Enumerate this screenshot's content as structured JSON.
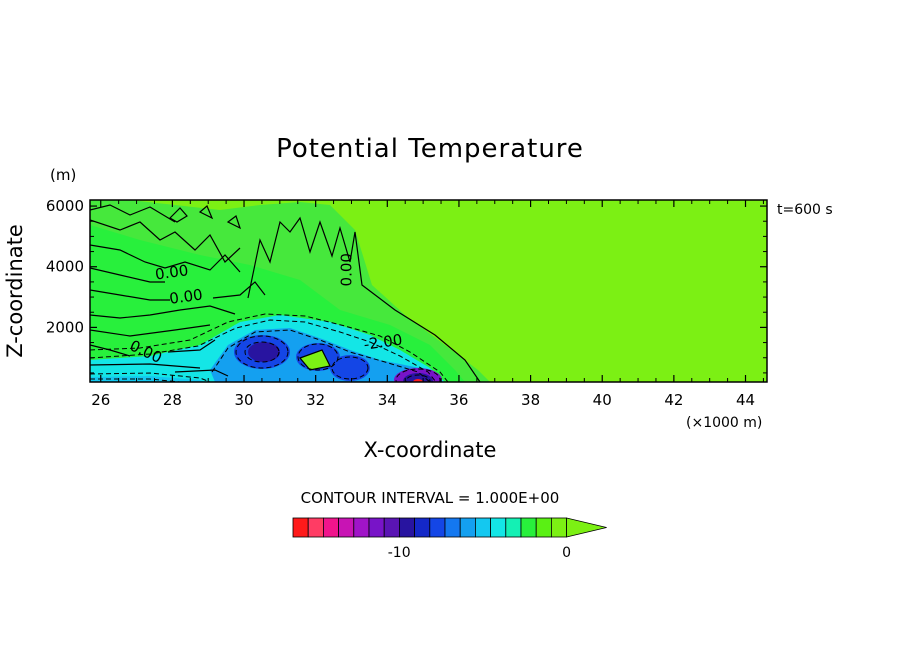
{
  "chart_data": {
    "type": "heatmap",
    "title": "Potential Temperature",
    "xlabel": "X-coordinate",
    "ylabel": "Z-coordinate",
    "x_unit": "(×1000 m)",
    "y_unit": "(m)",
    "time_label": "t=600 s",
    "contour_interval_label": "CONTOUR INTERVAL = 1.000E+00",
    "xlim": [
      25.7,
      44.6
    ],
    "ylim": [
      200,
      6200
    ],
    "x_ticks": [
      26,
      28,
      30,
      32,
      34,
      36,
      38,
      40,
      42,
      44
    ],
    "y_ticks": [
      2000,
      4000,
      6000
    ],
    "x_tick_labels": [
      "26",
      "28",
      "30",
      "32",
      "34",
      "36",
      "38",
      "40",
      "42",
      "44"
    ],
    "y_tick_labels": [
      "2000",
      "4000",
      "6000"
    ],
    "contour_labels": [
      {
        "text": "0.00",
        "x": 28.0,
        "z": 3650
      },
      {
        "text": "0.00",
        "x": 28.4,
        "z": 2850
      },
      {
        "text": "0.00",
        "x": 27.2,
        "z": 1050
      },
      {
        "text": "0.00",
        "x": 33.0,
        "z": 3900
      },
      {
        "text": "-2.00",
        "x": 33.9,
        "z": 1350
      }
    ],
    "colorbar": {
      "colors": [
        "#ff1a1a",
        "#ff3c64",
        "#f0148c",
        "#c814b4",
        "#a014c8",
        "#7814c8",
        "#5a14b4",
        "#2814a0",
        "#1428c8",
        "#1446e6",
        "#1478f0",
        "#14a0f0",
        "#14c8f0",
        "#14e6e6",
        "#14f0b4",
        "#28f03c",
        "#5af014",
        "#7cf014"
      ],
      "tick_labels": [
        "-10",
        "0"
      ]
    },
    "field_colors": {
      "background": "#7cf014",
      "green_mid": "#46e83c",
      "cyan": "#14e6e6",
      "light_blue": "#14a0f0",
      "blue": "#1446e6",
      "dark_blue": "#2814a0",
      "purple": "#7814c8",
      "red": "#ff1a1a"
    }
  }
}
